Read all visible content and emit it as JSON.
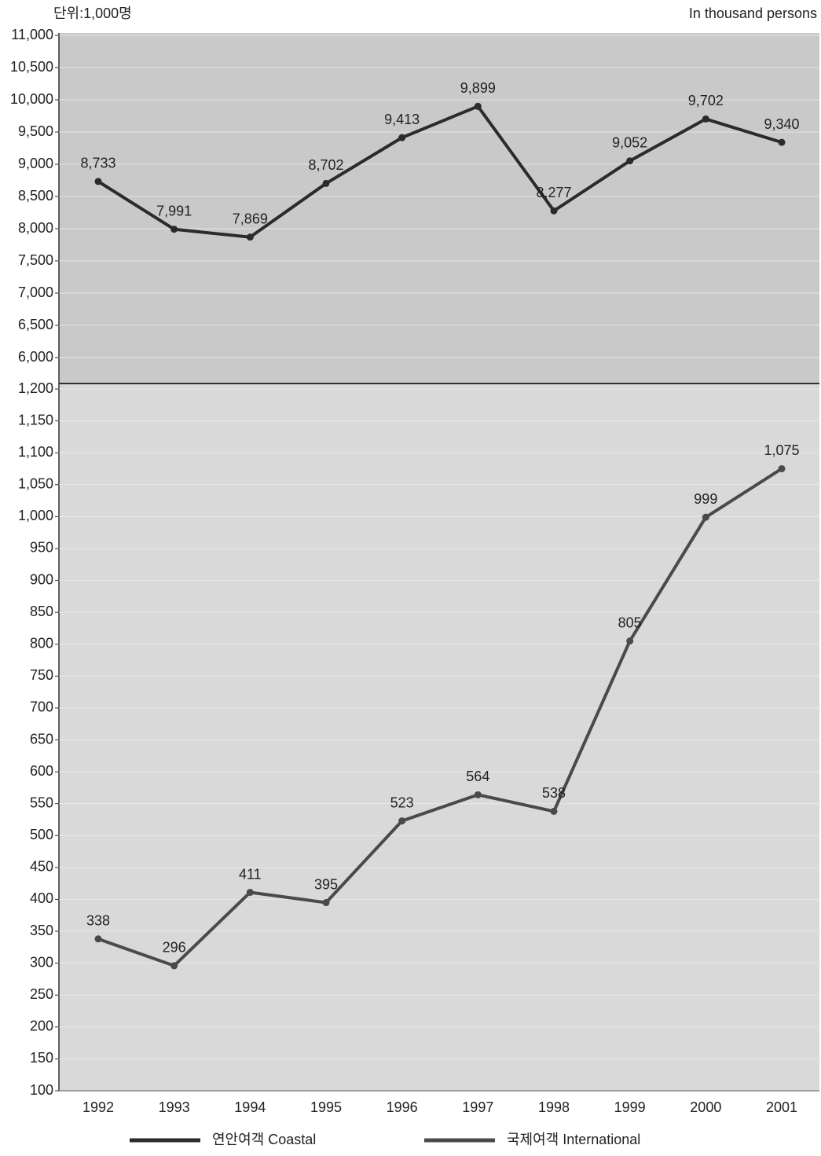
{
  "chart_data": [
    {
      "type": "line",
      "unit_label": "단위:1,000명",
      "unit_label_en": "In thousand persons",
      "series": [
        {
          "name": "연안여객 Coastal",
          "color": "#2b2b2b",
          "values": [
            8733,
            7991,
            7869,
            8702,
            9413,
            9899,
            8277,
            9052,
            9702,
            9340
          ],
          "value_labels": [
            "8,733",
            "7,991",
            "7,869",
            "8,702",
            "9,413",
            "9,899",
            "8,277",
            "9,052",
            "9,702",
            "9,340"
          ]
        }
      ],
      "ylim": [
        6000,
        11000
      ],
      "yticks": [
        {
          "value": 6000,
          "label": "6,000"
        },
        {
          "value": 6500,
          "label": "6,500"
        },
        {
          "value": 7000,
          "label": "7,000"
        },
        {
          "value": 7500,
          "label": "7,500"
        },
        {
          "value": 8000,
          "label": "8,000"
        },
        {
          "value": 8500,
          "label": "8,500"
        },
        {
          "value": 9000,
          "label": "9,000"
        },
        {
          "value": 9500,
          "label": "9,500"
        },
        {
          "value": 10000,
          "label": "10,000"
        },
        {
          "value": 10500,
          "label": "10,500"
        },
        {
          "value": 11000,
          "label": "11,000"
        }
      ],
      "grid": true
    },
    {
      "type": "line",
      "categories": [
        "1992",
        "1993",
        "1994",
        "1995",
        "1996",
        "1997",
        "1998",
        "1999",
        "2000",
        "2001"
      ],
      "series": [
        {
          "name": "국제여객 International",
          "color": "#4a4a4a",
          "values": [
            338,
            296,
            411,
            395,
            523,
            564,
            538,
            805,
            999,
            1075
          ],
          "value_labels": [
            "338",
            "296",
            "411",
            "395",
            "523",
            "564",
            "538",
            "805",
            "999",
            "1,075"
          ]
        }
      ],
      "ylim": [
        100,
        1200
      ],
      "yticks": [
        100,
        150,
        200,
        250,
        300,
        350,
        400,
        450,
        500,
        550,
        600,
        650,
        700,
        750,
        800,
        850,
        900,
        950,
        {
          "value": 1000,
          "label": "1,000"
        },
        {
          "value": 1050,
          "label": "1,050"
        },
        {
          "value": 1100,
          "label": "1,100"
        },
        {
          "value": 1150,
          "label": "1,150"
        },
        {
          "value": 1200,
          "label": "1,200"
        }
      ],
      "grid": true
    }
  ]
}
